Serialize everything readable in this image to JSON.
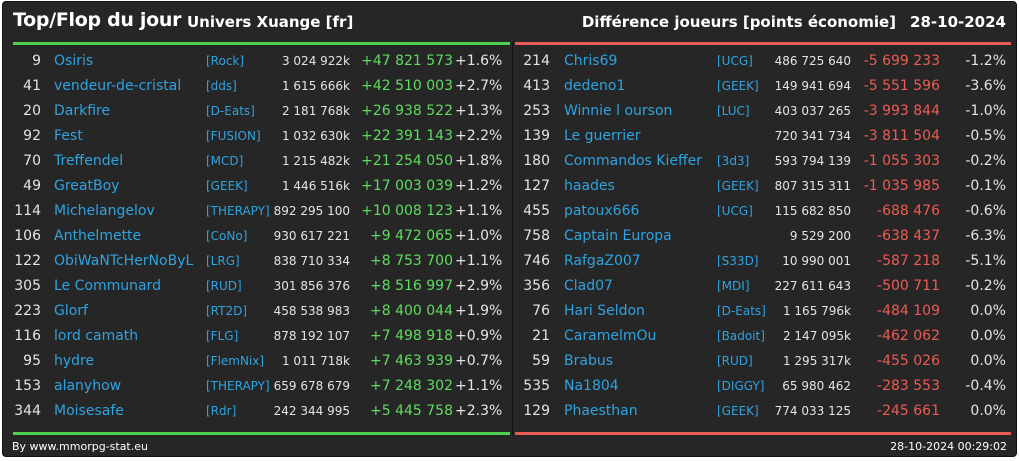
{
  "header": {
    "title": "Top/Flop du jour",
    "universe": "Univers Xuange [fr]",
    "category": "Différence joueurs [points économie]",
    "date": "28-10-2024"
  },
  "colors": {
    "background": "#262626",
    "gain": "#5fdc5f",
    "loss": "#ee5b52",
    "link": "#2fa3e0",
    "top_line": "#4ed14e",
    "flop_line": "#e85a52"
  },
  "top": [
    {
      "rank": "9",
      "name": "Osiris",
      "tag": "[Rock]",
      "points": "3 024 922k",
      "diff": "+47 821 573",
      "pct": "+1.6%"
    },
    {
      "rank": "41",
      "name": "vendeur-de-cristal",
      "tag": "[dds]",
      "points": "1 615 666k",
      "diff": "+42 510 003",
      "pct": "+2.7%"
    },
    {
      "rank": "20",
      "name": "Darkfire",
      "tag": "[D-Eats]",
      "points": "2 181 768k",
      "diff": "+26 938 522",
      "pct": "+1.3%"
    },
    {
      "rank": "92",
      "name": "Fest",
      "tag": "[FUSION]",
      "points": "1 032 630k",
      "diff": "+22 391 143",
      "pct": "+2.2%"
    },
    {
      "rank": "70",
      "name": "Treffendel",
      "tag": "[MCD]",
      "points": "1 215 482k",
      "diff": "+21 254 050",
      "pct": "+1.8%"
    },
    {
      "rank": "49",
      "name": "GreatBoy",
      "tag": "[GEEK]",
      "points": "1 446 516k",
      "diff": "+17 003 039",
      "pct": "+1.2%"
    },
    {
      "rank": "114",
      "name": "Michelangelov",
      "tag": "[THERAPY]",
      "points": "892 295 100",
      "diff": "+10 008 123",
      "pct": "+1.1%"
    },
    {
      "rank": "106",
      "name": "Anthelmette",
      "tag": "[CoNo]",
      "points": "930 617 221",
      "diff": "+9 472 065",
      "pct": "+1.0%"
    },
    {
      "rank": "122",
      "name": "ObiWaNTcHerNoByL",
      "tag": "[LRG]",
      "points": "838 710 334",
      "diff": "+8 753 700",
      "pct": "+1.1%"
    },
    {
      "rank": "305",
      "name": "Le Communard",
      "tag": "[RUD]",
      "points": "301 856 376",
      "diff": "+8 516 997",
      "pct": "+2.9%"
    },
    {
      "rank": "223",
      "name": "Glorf",
      "tag": "[RT2D]",
      "points": "458 538 983",
      "diff": "+8 400 044",
      "pct": "+1.9%"
    },
    {
      "rank": "116",
      "name": "lord camath",
      "tag": "[FLG]",
      "points": "878 192 107",
      "diff": "+7 498 918",
      "pct": "+0.9%"
    },
    {
      "rank": "95",
      "name": "hydre",
      "tag": "[FlemNix]",
      "points": "1 011 718k",
      "diff": "+7 463 939",
      "pct": "+0.7%"
    },
    {
      "rank": "153",
      "name": "alanyhow",
      "tag": "[THERAPY]",
      "points": "659 678 679",
      "diff": "+7 248 302",
      "pct": "+1.1%"
    },
    {
      "rank": "344",
      "name": "Moisesafe",
      "tag": "[Rdr]",
      "points": "242 344 995",
      "diff": "+5 445 758",
      "pct": "+2.3%"
    }
  ],
  "flop": [
    {
      "rank": "214",
      "name": "Chris69",
      "tag": "[UCG]",
      "points": "486 725 640",
      "diff": "-5 699 233",
      "pct": "-1.2%"
    },
    {
      "rank": "413",
      "name": "dedeno1",
      "tag": "[GEEK]",
      "points": "149 941 694",
      "diff": "-5 551 596",
      "pct": "-3.6%"
    },
    {
      "rank": "253",
      "name": "Winnie l ourson",
      "tag": "[LUC]",
      "points": "403 037 265",
      "diff": "-3 993 844",
      "pct": "-1.0%"
    },
    {
      "rank": "139",
      "name": "Le guerrier",
      "tag": "",
      "points": "720 341 734",
      "diff": "-3 811 504",
      "pct": "-0.5%"
    },
    {
      "rank": "180",
      "name": "Commandos Kieffer",
      "tag": "[3d3]",
      "points": "593 794 139",
      "diff": "-1 055 303",
      "pct": "-0.2%"
    },
    {
      "rank": "127",
      "name": "haades",
      "tag": "[GEEK]",
      "points": "807 315 311",
      "diff": "-1 035 985",
      "pct": "-0.1%"
    },
    {
      "rank": "455",
      "name": "patoux666",
      "tag": "[UCG]",
      "points": "115 682 850",
      "diff": "-688 476",
      "pct": "-0.6%"
    },
    {
      "rank": "758",
      "name": "Captain Europa",
      "tag": "",
      "points": "9 529 200",
      "diff": "-638 437",
      "pct": "-6.3%"
    },
    {
      "rank": "746",
      "name": "RafgaZ007",
      "tag": "[S33D]",
      "points": "10 990 001",
      "diff": "-587 218",
      "pct": "-5.1%"
    },
    {
      "rank": "356",
      "name": "Clad07",
      "tag": "[MDI]",
      "points": "227 611 643",
      "diff": "-500 711",
      "pct": "-0.2%"
    },
    {
      "rank": "76",
      "name": "Hari Seldon",
      "tag": "[D-Eats]",
      "points": "1 165 796k",
      "diff": "-484 109",
      "pct": "0.0%"
    },
    {
      "rank": "21",
      "name": "CaramelmOu",
      "tag": "[Badoit]",
      "points": "2 147 095k",
      "diff": "-462 062",
      "pct": "0.0%"
    },
    {
      "rank": "59",
      "name": "Brabus",
      "tag": "[RUD]",
      "points": "1 295 317k",
      "diff": "-455 026",
      "pct": "0.0%"
    },
    {
      "rank": "535",
      "name": "Na1804",
      "tag": "[DIGGY]",
      "points": "65 980 462",
      "diff": "-283 553",
      "pct": "-0.4%"
    },
    {
      "rank": "129",
      "name": "Phaesthan",
      "tag": "[GEEK]",
      "points": "774 033 125",
      "diff": "-245 661",
      "pct": "0.0%"
    }
  ],
  "footer": {
    "credit": "By www.mmorpg-stat.eu",
    "generated": "28-10-2024 00:29:02"
  }
}
